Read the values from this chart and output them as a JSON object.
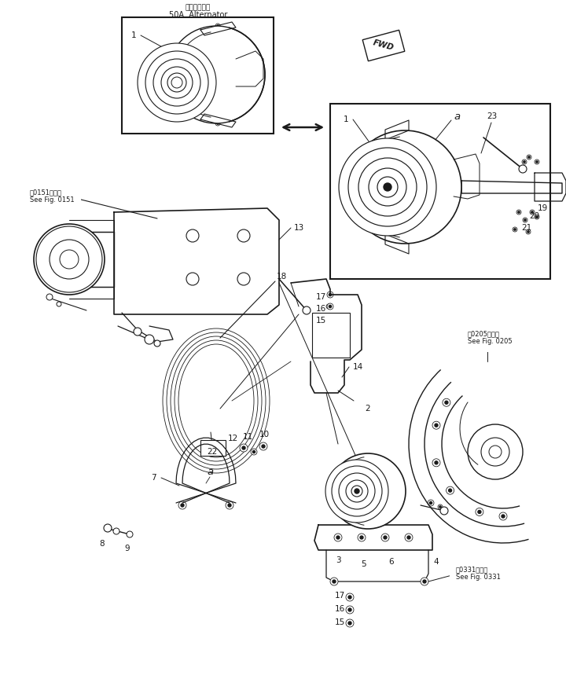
{
  "bg_color": "#ffffff",
  "line_color": "#1a1a1a",
  "fig_width": 7.2,
  "fig_height": 8.59,
  "dpi": 100,
  "inset_label_jp": "オルタネータ",
  "inset_label_en": "50A  Alternator",
  "ref_0151": "図0151図参照\nSee Fig. 0151",
  "ref_0205": "図0205図参照\nSee Fig. 0205",
  "ref_0331": "図0331図参照\nSee Fig. 0331"
}
